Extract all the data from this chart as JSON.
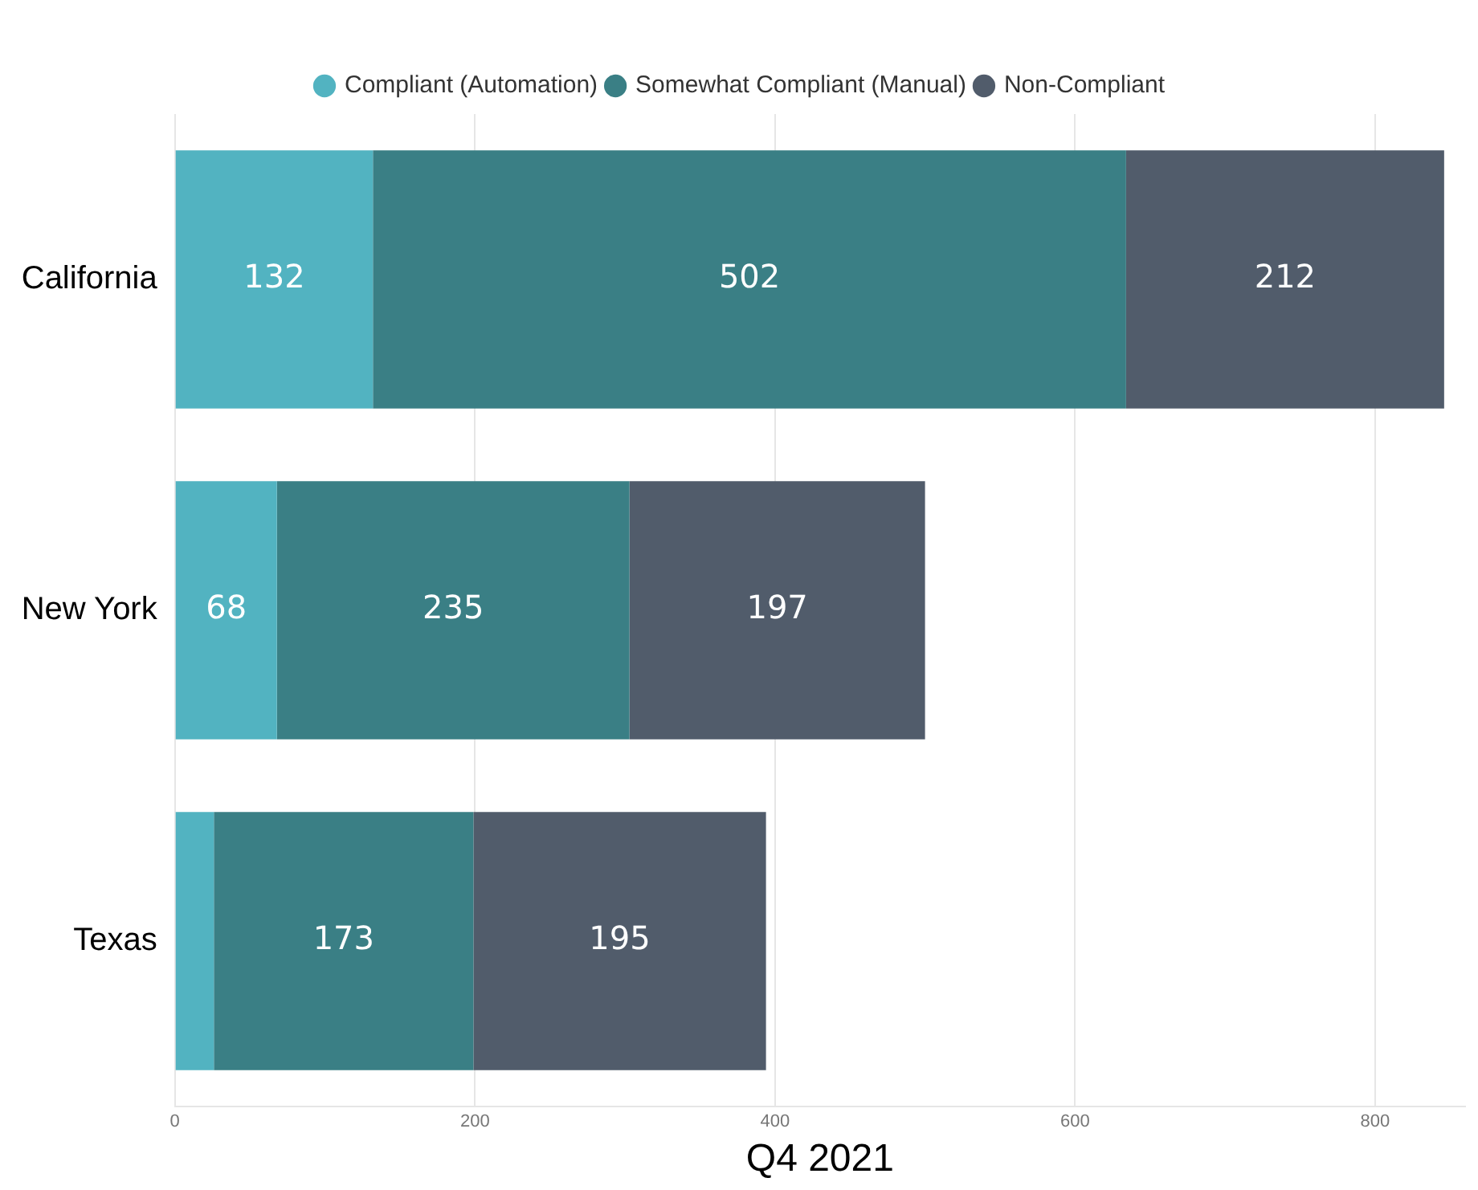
{
  "chart_data": {
    "type": "bar",
    "orientation": "horizontal",
    "stacked": true,
    "xlabel": "Q4 2021",
    "categories": [
      "California",
      "New York",
      "Texas"
    ],
    "series": [
      {
        "name": "Compliant (Automation)",
        "color": "#52b3c1",
        "values": [
          132,
          68,
          26
        ],
        "value_labels": [
          "132",
          "68",
          null
        ]
      },
      {
        "name": "Somewhat Compliant (Manual)",
        "color": "#3a7f85",
        "values": [
          502,
          235,
          173
        ],
        "value_labels": [
          "502",
          "235",
          "173"
        ]
      },
      {
        "name": "Non-Compliant",
        "color": "#515c6b",
        "values": [
          212,
          197,
          195
        ],
        "value_labels": [
          "212",
          "197",
          "195"
        ]
      }
    ],
    "xlim": [
      0,
      860
    ],
    "xticks": [
      0,
      200,
      400,
      600,
      800
    ],
    "grid": "x",
    "legend": "top"
  }
}
